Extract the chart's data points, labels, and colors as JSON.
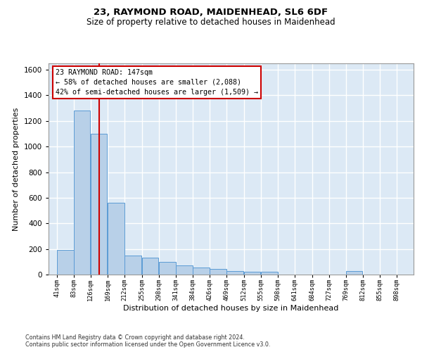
{
  "title1": "23, RAYMOND ROAD, MAIDENHEAD, SL6 6DF",
  "title2": "Size of property relative to detached houses in Maidenhead",
  "xlabel": "Distribution of detached houses by size in Maidenhead",
  "ylabel": "Number of detached properties",
  "bar_left_edges": [
    41,
    83,
    126,
    169,
    212,
    255,
    298,
    341,
    384,
    426,
    469,
    512,
    555,
    598,
    641,
    684,
    727,
    769,
    812,
    855
  ],
  "bar_heights": [
    190,
    1280,
    1100,
    560,
    150,
    130,
    100,
    70,
    55,
    45,
    25,
    20,
    20,
    0,
    0,
    0,
    0,
    25,
    0,
    0
  ],
  "bin_width": 42,
  "bar_color": "#b8d0e8",
  "bar_edge_color": "#5b9bd5",
  "bg_color": "#dce9f5",
  "grid_color": "#ffffff",
  "vline_x": 147,
  "vline_color": "#cc0000",
  "annotation_text": "23 RAYMOND ROAD: 147sqm\n← 58% of detached houses are smaller (2,088)\n42% of semi-detached houses are larger (1,509) →",
  "annotation_box_color": "#cc0000",
  "footnote1": "Contains HM Land Registry data © Crown copyright and database right 2024.",
  "footnote2": "Contains public sector information licensed under the Open Government Licence v3.0.",
  "tick_labels": [
    "41sqm",
    "83sqm",
    "126sqm",
    "169sqm",
    "212sqm",
    "255sqm",
    "298sqm",
    "341sqm",
    "384sqm",
    "426sqm",
    "469sqm",
    "512sqm",
    "555sqm",
    "598sqm",
    "641sqm",
    "684sqm",
    "727sqm",
    "769sqm",
    "812sqm",
    "855sqm",
    "898sqm"
  ],
  "tick_positions": [
    41,
    83,
    126,
    169,
    212,
    255,
    298,
    341,
    384,
    426,
    469,
    512,
    555,
    598,
    641,
    684,
    727,
    769,
    812,
    855,
    898
  ],
  "ylim": [
    0,
    1650
  ],
  "xlim": [
    20,
    940
  ]
}
